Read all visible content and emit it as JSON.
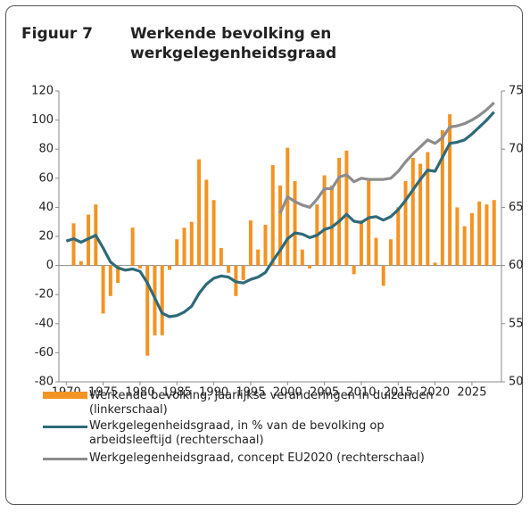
{
  "chart_data": {
    "type": "bar-line",
    "label": "Figuur 7",
    "title": "Werkende bevolking en werkgelegenheidsgraad",
    "x": [
      1970,
      1971,
      1972,
      1973,
      1974,
      1975,
      1976,
      1977,
      1978,
      1979,
      1980,
      1981,
      1982,
      1983,
      1984,
      1985,
      1986,
      1987,
      1988,
      1989,
      1990,
      1991,
      1992,
      1993,
      1994,
      1995,
      1996,
      1997,
      1998,
      1999,
      2000,
      2001,
      2002,
      2003,
      2004,
      2005,
      2006,
      2007,
      2008,
      2009,
      2010,
      2011,
      2012,
      2013,
      2014,
      2015,
      2016,
      2017,
      2018,
      2019,
      2020,
      2021,
      2022,
      2023,
      2024,
      2025,
      2026,
      2027,
      2028
    ],
    "xlim": [
      1969,
      2029
    ],
    "xticks": [
      1970,
      1975,
      1980,
      1985,
      1990,
      1995,
      2000,
      2005,
      2010,
      2015,
      2020,
      2025
    ],
    "ylim": [
      -80,
      120
    ],
    "yticks": [
      -80,
      -60,
      -40,
      -20,
      0,
      20,
      40,
      60,
      80,
      100,
      120
    ],
    "y2lim": [
      50,
      75
    ],
    "y2ticks": [
      50,
      55,
      60,
      65,
      70,
      75
    ],
    "grid": false,
    "series": [
      {
        "name": "Werkende bevolking, jaarlijkse veranderingen in duizenden (linkerschaal)",
        "type": "bar",
        "axis": "y",
        "color": "#f39323",
        "values": [
          null,
          29,
          3,
          35,
          42,
          -33,
          -21,
          -12,
          0,
          26,
          -2,
          -62,
          -48,
          -48,
          -3,
          18,
          26,
          30,
          73,
          59,
          45,
          12,
          -5,
          -21,
          -10,
          31,
          11,
          28,
          69,
          55,
          81,
          58,
          11,
          -2,
          42,
          62,
          55,
          74,
          79,
          -6,
          31,
          59,
          19,
          -14,
          18,
          40,
          58,
          74,
          70,
          78,
          2,
          93,
          104,
          40,
          27,
          36,
          44,
          42,
          45
        ]
      },
      {
        "name": "Werkgelegenheidsgraad, in % van de bevolking op arbeidsleeftijd (rechterschaal)",
        "type": "line",
        "axis": "y2",
        "color": "#2e6a78",
        "values": [
          62.1,
          62.3,
          62.0,
          62.3,
          62.6,
          61.5,
          60.3,
          59.8,
          59.6,
          59.7,
          59.5,
          58.5,
          57.2,
          55.9,
          55.6,
          55.7,
          56.0,
          56.5,
          57.6,
          58.4,
          58.9,
          59.1,
          59.0,
          58.6,
          58.5,
          58.8,
          59.0,
          59.4,
          60.4,
          61.3,
          62.3,
          62.8,
          62.7,
          62.4,
          62.6,
          63.1,
          63.3,
          63.8,
          64.4,
          63.8,
          63.7,
          64.1,
          64.2,
          63.9,
          64.2,
          64.8,
          65.6,
          66.5,
          67.4,
          68.2,
          68.1,
          69.3,
          70.5,
          70.6,
          70.8,
          71.3,
          71.9,
          72.5,
          73.2
        ]
      },
      {
        "name": "Werkgelegenheidsgraad, concept EU2020 (rechterschaal)",
        "type": "line",
        "axis": "y2",
        "color": "#8c8c8c",
        "values": [
          null,
          null,
          null,
          null,
          null,
          null,
          null,
          null,
          null,
          null,
          null,
          null,
          null,
          null,
          null,
          null,
          null,
          null,
          null,
          null,
          null,
          null,
          null,
          null,
          null,
          null,
          null,
          null,
          null,
          64.5,
          65.9,
          65.5,
          65.2,
          65.0,
          65.7,
          66.6,
          66.6,
          67.6,
          67.8,
          67.2,
          67.5,
          67.4,
          67.4,
          67.4,
          67.5,
          68.1,
          68.9,
          69.6,
          70.2,
          70.8,
          70.5,
          71.0,
          71.9,
          72.0,
          72.2,
          72.5,
          72.9,
          73.4,
          74.0
        ]
      }
    ]
  }
}
